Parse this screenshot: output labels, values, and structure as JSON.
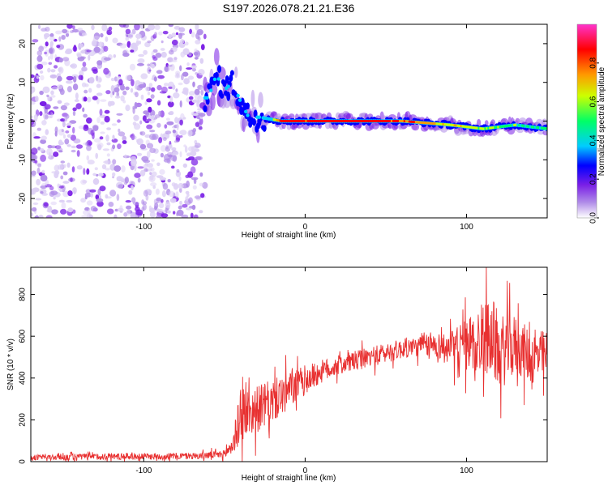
{
  "page_title": "S197.2026.078.21.21.E36",
  "chart_data": [
    {
      "type": "heatmap",
      "name": "spectrogram",
      "xlabel": "Height of straight line (km)",
      "ylabel": "Frequency (Hz)",
      "xlim": [
        -170,
        150
      ],
      "ylim": [
        -25,
        25
      ],
      "x_ticks": [
        -100,
        0,
        100
      ],
      "y_ticks": [
        -20,
        -10,
        0,
        10,
        20
      ],
      "noise_region_x": [
        -170,
        -62
      ],
      "signal_ridge": [
        {
          "x": -60,
          "y": 6,
          "amp": 0.4
        },
        {
          "x": -55,
          "y": 12,
          "amp": 0.3
        },
        {
          "x": -50,
          "y": 8,
          "amp": 0.35
        },
        {
          "x": -45,
          "y": 10,
          "amp": 0.25
        },
        {
          "x": -40,
          "y": 5,
          "amp": 0.3
        },
        {
          "x": -35,
          "y": 1,
          "amp": 0.35
        },
        {
          "x": -28,
          "y": 1,
          "amp": 0.4
        },
        {
          "x": -15,
          "y": 0,
          "amp": 0.9
        },
        {
          "x": 0,
          "y": 0,
          "amp": 0.9
        },
        {
          "x": 30,
          "y": 0,
          "amp": 0.95
        },
        {
          "x": 60,
          "y": 0,
          "amp": 0.85
        },
        {
          "x": 90,
          "y": -1,
          "amp": 0.7
        },
        {
          "x": 110,
          "y": -2,
          "amp": 0.6
        },
        {
          "x": 130,
          "y": -1,
          "amp": 0.55
        },
        {
          "x": 150,
          "y": -2,
          "amp": 0.5
        }
      ],
      "colorbar": {
        "label": "Normalized spectral amplitude",
        "range": [
          0,
          1
        ],
        "ticks": [
          "0.0",
          "0.2",
          "0.4",
          "0.6",
          "0.8"
        ],
        "colors": [
          "#ffffff",
          "#b08ce8",
          "#7a1fe6",
          "#0000ff",
          "#00ccff",
          "#00ff66",
          "#ccff00",
          "#ff9900",
          "#ff0000",
          "#ff33cc"
        ]
      }
    },
    {
      "type": "line",
      "name": "snr",
      "xlabel": "Height of straight line (km)",
      "ylabel": "SNR (10 * v/v)",
      "xlim": [
        -170,
        150
      ],
      "ylim": [
        0,
        930
      ],
      "x_ticks": [
        -100,
        0,
        100
      ],
      "y_ticks": [
        0,
        200,
        400,
        600,
        800
      ],
      "color": "#e83030",
      "series": [
        {
          "name": "snr",
          "x": [
            -170,
            -150,
            -120,
            -90,
            -65,
            -50,
            -45,
            -40,
            -30,
            -20,
            -10,
            0,
            10,
            20,
            30,
            40,
            50,
            60,
            70,
            80,
            90,
            100,
            110,
            115,
            120,
            130,
            140,
            150
          ],
          "y": [
            20,
            22,
            25,
            25,
            28,
            35,
            80,
            220,
            250,
            290,
            340,
            390,
            430,
            460,
            480,
            500,
            520,
            540,
            550,
            560,
            540,
            560,
            580,
            620,
            520,
            560,
            500,
            500
          ],
          "amplitude": [
            15,
            20,
            20,
            20,
            20,
            25,
            60,
            160,
            140,
            130,
            110,
            90,
            70,
            60,
            60,
            60,
            60,
            60,
            60,
            70,
            100,
            160,
            220,
            240,
            230,
            180,
            160,
            160
          ]
        }
      ]
    }
  ]
}
